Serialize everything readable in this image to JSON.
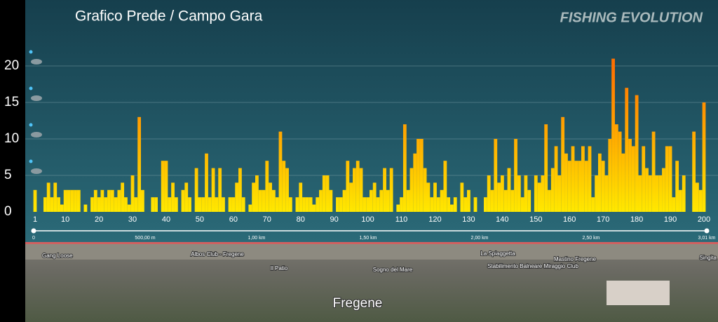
{
  "chart_data": {
    "type": "bar",
    "title": "Grafico Prede / Campo Gara",
    "logo": "FISHING EVOLUTION",
    "x": [
      1,
      2,
      3,
      4,
      5,
      6,
      7,
      8,
      9,
      10,
      11,
      12,
      13,
      14,
      15,
      16,
      17,
      18,
      19,
      20,
      21,
      22,
      23,
      24,
      25,
      26,
      27,
      28,
      29,
      30,
      31,
      32,
      33,
      34,
      35,
      36,
      37,
      38,
      39,
      40,
      41,
      42,
      43,
      44,
      45,
      46,
      47,
      48,
      49,
      50,
      51,
      52,
      53,
      54,
      55,
      56,
      57,
      58,
      59,
      60,
      61,
      62,
      63,
      64,
      65,
      66,
      67,
      68,
      69,
      70,
      71,
      72,
      73,
      74,
      75,
      76,
      77,
      78,
      79,
      80,
      81,
      82,
      83,
      84,
      85,
      86,
      87,
      88,
      89,
      90,
      91,
      92,
      93,
      94,
      95,
      96,
      97,
      98,
      99,
      100,
      101,
      102,
      103,
      104,
      105,
      106,
      107,
      108,
      109,
      110,
      111,
      112,
      113,
      114,
      115,
      116,
      117,
      118,
      119,
      120,
      121,
      122,
      123,
      124,
      125,
      126,
      127,
      128,
      129,
      130,
      131,
      132,
      133,
      134,
      135,
      136,
      137,
      138,
      139,
      140,
      141,
      142,
      143,
      144,
      145,
      146,
      147,
      148,
      149,
      150,
      151,
      152,
      153,
      154,
      155,
      156,
      157,
      158,
      159,
      160,
      161,
      162,
      163,
      164,
      165,
      166,
      167,
      168,
      169,
      170,
      171,
      172,
      173,
      174,
      175,
      176,
      177,
      178,
      179,
      180,
      181,
      182,
      183,
      184,
      185,
      186,
      187,
      188,
      189,
      190,
      191,
      192,
      193,
      194,
      195,
      196,
      197,
      198,
      199,
      200
    ],
    "values": [
      3,
      0,
      0,
      2,
      4,
      2,
      4,
      2,
      1,
      3,
      3,
      3,
      3,
      3,
      0,
      1,
      0,
      2,
      3,
      2,
      3,
      2,
      3,
      3,
      2,
      3,
      4,
      2,
      1,
      5,
      2,
      13,
      3,
      0,
      0,
      2,
      2,
      0,
      7,
      7,
      2,
      4,
      2,
      0,
      3,
      4,
      2,
      0,
      6,
      2,
      2,
      8,
      2,
      6,
      2,
      6,
      2,
      0,
      2,
      2,
      4,
      6,
      2,
      0,
      1,
      4,
      5,
      3,
      3,
      7,
      4,
      3,
      2,
      11,
      7,
      6,
      2,
      0,
      2,
      4,
      2,
      2,
      2,
      1,
      2,
      3,
      5,
      5,
      3,
      0,
      2,
      2,
      3,
      7,
      4,
      6,
      7,
      6,
      2,
      2,
      3,
      4,
      2,
      3,
      6,
      3,
      6,
      0,
      1,
      2,
      12,
      3,
      6,
      8,
      10,
      10,
      6,
      4,
      2,
      4,
      2,
      3,
      7,
      2,
      1,
      2,
      0,
      4,
      2,
      3,
      0,
      2,
      0,
      0,
      2,
      5,
      3,
      10,
      4,
      5,
      3,
      6,
      3,
      10,
      5,
      2,
      5,
      3,
      0,
      5,
      4,
      5,
      12,
      3,
      6,
      9,
      5,
      13,
      8,
      7,
      9,
      7,
      7,
      9,
      7,
      9,
      2,
      5,
      8,
      7,
      5,
      10,
      21,
      12,
      11,
      8,
      17,
      10,
      9,
      16,
      5,
      9,
      6,
      5,
      11,
      5,
      5,
      6,
      9,
      9,
      2,
      7,
      3,
      5,
      0,
      0,
      11,
      4,
      3,
      15
    ],
    "colors": [
      "#ffe800",
      "#ff7000"
    ],
    "xlim": [
      1,
      200
    ],
    "xticks": [
      1,
      10,
      20,
      30,
      40,
      50,
      60,
      70,
      80,
      90,
      100,
      110,
      120,
      130,
      140,
      150,
      160,
      170,
      180,
      190,
      200
    ],
    "ylim": [
      0,
      20
    ],
    "yticks": [
      0,
      5,
      10,
      15,
      20
    ],
    "grid": true,
    "scale_labels": [
      "0",
      "500,00 m",
      "1,00 km",
      "1,50 km",
      "2,00 km",
      "2,50 km",
      "3,01 km"
    ],
    "map_labels": [
      "Gang Loose",
      "Albos Club - Fregene",
      "Il Patio",
      "Sogno del Mare",
      "La Spiaggetta",
      "Stabilimento Balneare Miraggio Club",
      "Mastino Fregene",
      "Singita"
    ],
    "place": "Fregene"
  }
}
